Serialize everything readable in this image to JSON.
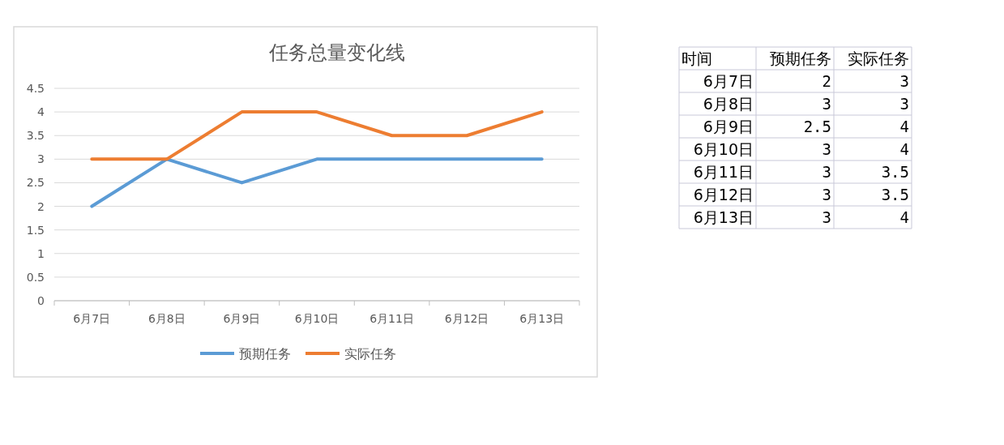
{
  "chart_data": [
    {
      "type": "line",
      "title": "任务总量变化线",
      "categories": [
        "6月7日",
        "6月8日",
        "6月9日",
        "6月10日",
        "6月11日",
        "6月12日",
        "6月13日"
      ],
      "series": [
        {
          "name": "预期任务",
          "color": "#5b9bd5",
          "values": [
            2,
            3,
            2.5,
            3,
            3,
            3,
            3
          ]
        },
        {
          "name": "实际任务",
          "color": "#ed7d31",
          "values": [
            3,
            3,
            4,
            4,
            3.5,
            3.5,
            4
          ]
        }
      ],
      "ylim": [
        0,
        4.5
      ],
      "yticks": [
        0,
        0.5,
        1,
        1.5,
        2,
        2.5,
        3,
        3.5,
        4,
        4.5
      ],
      "grid": "y",
      "legend": "bottom",
      "marker": "none",
      "line_style": "solid"
    },
    {
      "type": "other",
      "categories": [
        "6月7日",
        "6月8日",
        "6月9日",
        "6月10日",
        "6月11日",
        "6月12日",
        "6月13日"
      ],
      "series": [
        {
          "name": "预期任务",
          "values": [
            2,
            3,
            2.5,
            3,
            3,
            3,
            3
          ]
        },
        {
          "name": "实际任务",
          "values": [
            3,
            3,
            4,
            4,
            3.5,
            3.5,
            4
          ]
        }
      ],
      "data_labels": true,
      "annotations": [
        "时间"
      ]
    }
  ]
}
